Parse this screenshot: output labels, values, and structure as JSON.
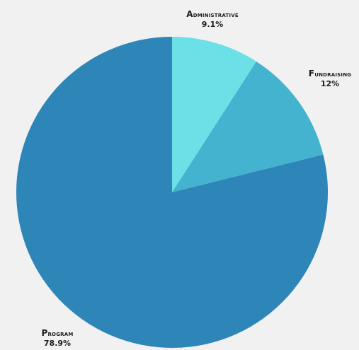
{
  "chart_data": {
    "type": "pie",
    "title": "",
    "start_angle_deg": 0,
    "direction": "clockwise",
    "slices": [
      {
        "label": "Administrative",
        "value": 9.1,
        "display": "9.1%",
        "color": "#6be0e6"
      },
      {
        "label": "Fundraising",
        "value": 12,
        "display": "12%",
        "color": "#43b3d0"
      },
      {
        "label": "Program",
        "value": 78.9,
        "display": "78.9%",
        "color": "#2e86b8"
      }
    ]
  },
  "colors": {
    "background": "#f1f1f1",
    "label_text": "#1c1c1c"
  }
}
